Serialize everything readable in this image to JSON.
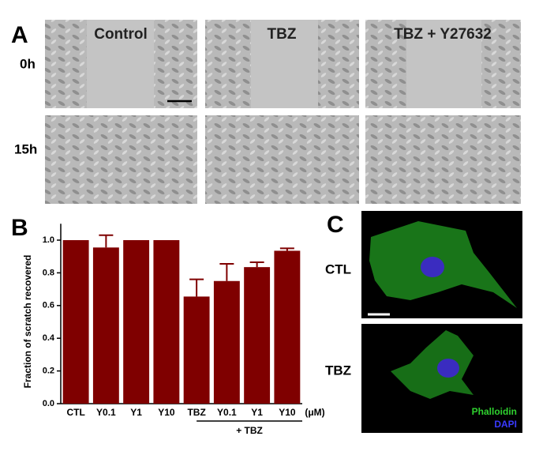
{
  "panels": {
    "a": "A",
    "b": "B",
    "c": "C"
  },
  "panel_a": {
    "columns": [
      "Control",
      "TBZ",
      "TBZ + Y27632"
    ],
    "rows": [
      "0h",
      "15h"
    ]
  },
  "chart_data": {
    "type": "bar",
    "y_label": "Fraction of scratch recovered",
    "categories": [
      "CTL",
      "Y0.1",
      "Y1",
      "Y10",
      "TBZ",
      "Y0.1",
      "Y1",
      "Y10"
    ],
    "unit": "(μM)",
    "group_label": "+ TBZ",
    "values": [
      1.0,
      0.955,
      1.0,
      1.0,
      0.655,
      0.75,
      0.835,
      0.935
    ],
    "errors": [
      0,
      0.075,
      0,
      0,
      0.105,
      0.105,
      0.03,
      0.015
    ],
    "color": "#7f0000",
    "ylim": [
      0,
      1.1
    ],
    "yticks": [
      {
        "value": 0,
        "label": "0.0"
      },
      0.2,
      0.4,
      0.6,
      0.8,
      {
        "value": 1,
        "label": "1.0"
      }
    ]
  },
  "panel_c": {
    "rows": [
      "CTL",
      "TBZ"
    ],
    "legend": [
      "Phalloidin",
      "DAPI"
    ]
  }
}
